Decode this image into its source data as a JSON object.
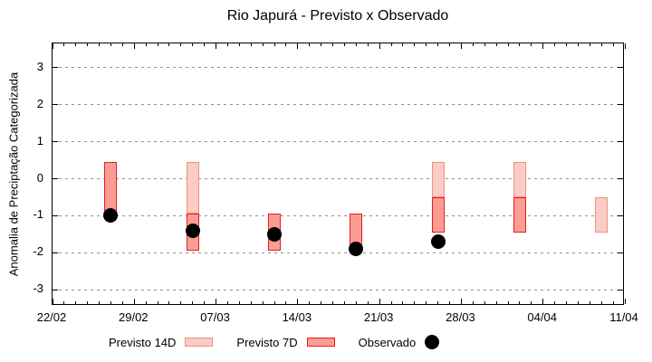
{
  "chart_data": {
    "type": "bar",
    "title": "Rio Japurá - Previsto x Observado",
    "xlabel": "",
    "ylabel": "Anomalia de Preciptação Categorizada",
    "xlim": [
      0,
      49
    ],
    "ylim": [
      -3.43,
      3.65
    ],
    "grid": "horizontal-dashed",
    "grid_color": "#909090",
    "axis_color": "#000000",
    "x_tick_labels": [
      "22/02",
      "29/02",
      "07/03",
      "14/03",
      "21/03",
      "28/03",
      "04/04",
      "11/04"
    ],
    "x_tick_days": [
      0,
      7,
      14,
      21,
      28,
      35,
      42,
      49
    ],
    "x_minor_step": 1,
    "y_ticks": [
      3,
      2,
      1,
      0,
      -1,
      -2,
      -3
    ],
    "series": [
      {
        "name": "Previsto 14D",
        "type": "range-bar",
        "color_fill": "#fbcbc5",
        "color_border": "#f0907e",
        "points": [
          {
            "date": "05/03",
            "day": 12,
            "low": -0.95,
            "high": 0.45
          },
          {
            "date": "26/03",
            "day": 33,
            "low": -0.5,
            "high": 0.45
          },
          {
            "date": "02/04",
            "day": 40,
            "low": -0.5,
            "high": 0.45
          },
          {
            "date": "09/04",
            "day": 47,
            "low": -1.45,
            "high": -0.5
          }
        ]
      },
      {
        "name": "Previsto 7D",
        "type": "range-bar",
        "color_fill": "#fb9c95",
        "color_border": "#e41f1f",
        "points": [
          {
            "date": "27/02",
            "day": 5,
            "low": -0.95,
            "high": 0.45
          },
          {
            "date": "05/03",
            "day": 12,
            "low": -1.95,
            "high": -0.95
          },
          {
            "date": "12/03",
            "day": 19,
            "low": -1.95,
            "high": -0.95
          },
          {
            "date": "19/03",
            "day": 26,
            "low": -1.95,
            "high": -0.95
          },
          {
            "date": "26/03",
            "day": 33,
            "low": -1.45,
            "high": -0.5
          },
          {
            "date": "02/04",
            "day": 40,
            "low": -1.45,
            "high": -0.5
          }
        ]
      },
      {
        "name": "Observado",
        "type": "scatter",
        "color": "#000000",
        "points": [
          {
            "date": "27/02",
            "day": 5,
            "value": -1.0
          },
          {
            "date": "05/03",
            "day": 12,
            "value": -1.4
          },
          {
            "date": "12/03",
            "day": 19,
            "value": -1.5
          },
          {
            "date": "19/03",
            "day": 26,
            "value": -1.9
          },
          {
            "date": "26/03",
            "day": 33,
            "value": -1.7
          }
        ]
      }
    ],
    "legend_position": "bottom-left",
    "legend": [
      {
        "label": "Previsto 14D",
        "swatch": "light-bar"
      },
      {
        "label": "Previsto 7D",
        "swatch": "dark-bar"
      },
      {
        "label": "Observado",
        "swatch": "dot"
      }
    ]
  }
}
